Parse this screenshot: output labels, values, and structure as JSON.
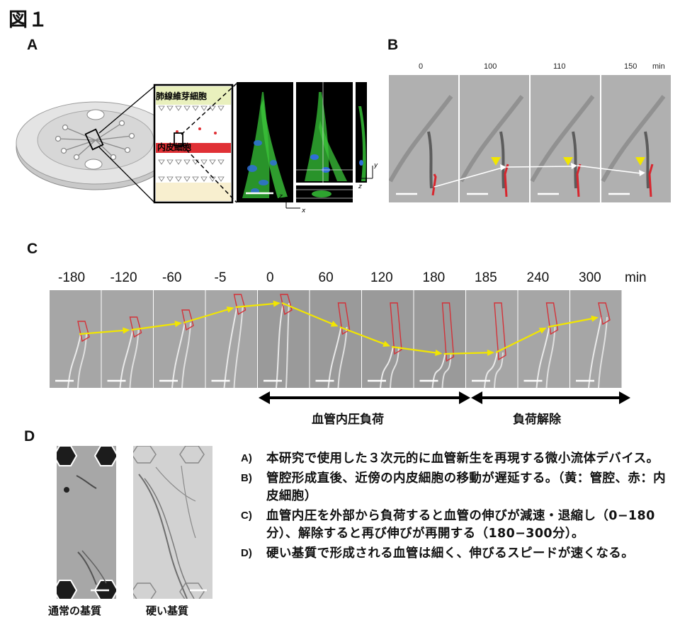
{
  "figure_title": "図１",
  "panels": {
    "A": {
      "label": "A",
      "inset_top": "肺線維芽細胞",
      "inset_bottom": "内皮細胞",
      "axis_z1": "z",
      "axis_x": "x",
      "axis_y": "y",
      "axis_z2": "z"
    },
    "B": {
      "label": "B",
      "times": [
        "0",
        "100",
        "110",
        "150"
      ],
      "unit": "min"
    },
    "C": {
      "label": "C",
      "times": [
        "-180",
        "-120",
        "-60",
        "-5",
        "0",
        "60",
        "120",
        "180",
        "185",
        "240",
        "300"
      ],
      "unit": "min",
      "load_label": "血管内圧負荷",
      "release_label": "負荷解除"
    },
    "D": {
      "label": "D",
      "left_label": "通常の基質",
      "right_label": "硬い基質"
    }
  },
  "caption": [
    {
      "key": "A)",
      "text": "本研究で使用した３次元的に血管新生を再現する微小流体デバイス。"
    },
    {
      "key": "B)",
      "text": "管腔形成直後、近傍の内皮細胞の移動が遅延する。（黄：管腔、赤：内皮細胞）"
    },
    {
      "key": "C)",
      "text": "血管内圧を外部から負荷すると血管の伸びが減速・退縮し（0−180分）、解除すると再び伸びが再開する（180−300分）。"
    },
    {
      "key": "D)",
      "text": "硬い基質で形成される血管は細く、伸びるスピードが速くなる。"
    }
  ],
  "colors": {
    "arrow_yellow": "#f2e600",
    "cell_red": "#d8262e",
    "nucleus_blue": "#2a6fd6",
    "actin_green": "#36c93b",
    "micrograph_gray": "#a9a9a9"
  }
}
